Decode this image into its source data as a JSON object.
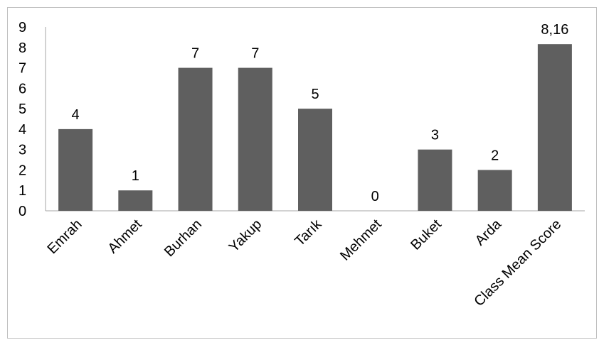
{
  "chart_data": {
    "type": "bar",
    "categories": [
      "Emrah",
      "Ahmet",
      "Burhan",
      "Yakup",
      "Tarık",
      "Mehmet",
      "Buket",
      "Arda",
      "Class Mean Score"
    ],
    "values": [
      4,
      1,
      7,
      7,
      5,
      0,
      3,
      2,
      8.16
    ],
    "data_labels": [
      "4",
      "1",
      "7",
      "7",
      "5",
      "0",
      "3",
      "2",
      "8,16"
    ],
    "yticks": [
      "0",
      "1",
      "2",
      "3",
      "4",
      "5",
      "6",
      "7",
      "8",
      "9"
    ],
    "ylim": [
      0,
      9
    ],
    "grid": false,
    "legend": "none",
    "colors": {
      "bar": "#5f5f5f",
      "axis": "#a6a6a6",
      "frame": "#bfbfbf"
    },
    "title": "",
    "xlabel": "",
    "ylabel": ""
  }
}
